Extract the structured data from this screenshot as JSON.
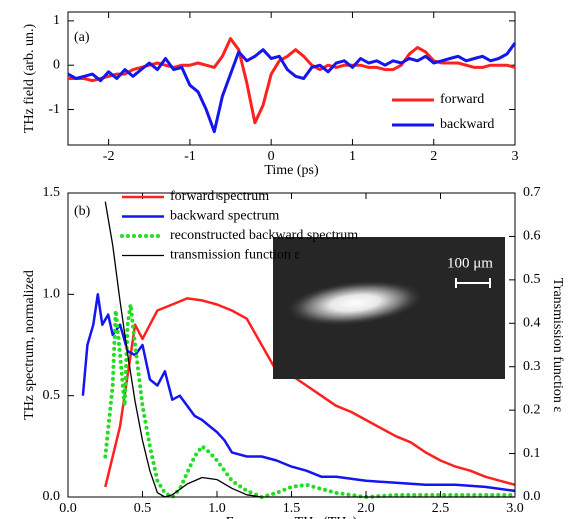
{
  "chart_data": [
    {
      "type": "line",
      "label": "(a)",
      "x_label": "Time (ps)",
      "y_label": "THz field (arb. un.)",
      "xlim": [
        -2.5,
        3
      ],
      "xticks": [
        -2,
        -1,
        0,
        1,
        2,
        3
      ],
      "ylim": [
        -1.8,
        1.2
      ],
      "yticks": [
        -1,
        0,
        1
      ],
      "legend": "lower right",
      "x": [
        -2.5,
        -2.4,
        -2.3,
        -2.2,
        -2.1,
        -2.0,
        -1.9,
        -1.8,
        -1.7,
        -1.6,
        -1.5,
        -1.4,
        -1.3,
        -1.2,
        -1.1,
        -1.0,
        -0.9,
        -0.8,
        -0.7,
        -0.6,
        -0.5,
        -0.4,
        -0.3,
        -0.2,
        -0.1,
        0.0,
        0.1,
        0.2,
        0.3,
        0.4,
        0.5,
        0.6,
        0.7,
        0.8,
        0.9,
        1.0,
        1.1,
        1.2,
        1.3,
        1.4,
        1.5,
        1.6,
        1.7,
        1.8,
        1.9,
        2.0,
        2.1,
        2.2,
        2.3,
        2.4,
        2.5,
        2.6,
        2.7,
        2.8,
        2.9,
        3.0
      ],
      "series": [
        {
          "name": "forward",
          "color": "#ff2020",
          "width": 3,
          "values": [
            -0.3,
            -0.3,
            -0.3,
            -0.35,
            -0.3,
            -0.25,
            -0.2,
            -0.2,
            -0.1,
            -0.05,
            0.0,
            0.05,
            0.0,
            -0.05,
            0.0,
            0.0,
            0.05,
            0.0,
            -0.05,
            0.2,
            0.6,
            0.35,
            -0.4,
            -1.3,
            -0.9,
            -0.2,
            0.1,
            0.2,
            0.35,
            0.2,
            0.0,
            -0.1,
            0.0,
            -0.05,
            0.0,
            0.0,
            0.0,
            -0.05,
            -0.05,
            -0.1,
            -0.1,
            0.0,
            0.25,
            0.4,
            0.3,
            0.1,
            0.05,
            0.05,
            0.05,
            0.0,
            -0.05,
            -0.05,
            0.0,
            0.0,
            0.0,
            -0.05
          ]
        },
        {
          "name": "backward",
          "color": "#1515ee",
          "width": 3,
          "values": [
            -0.2,
            -0.3,
            -0.25,
            -0.2,
            -0.35,
            -0.15,
            -0.3,
            -0.1,
            -0.25,
            -0.1,
            0.05,
            -0.1,
            0.15,
            -0.1,
            -0.05,
            -0.45,
            -0.6,
            -1.0,
            -1.5,
            -0.7,
            -0.2,
            0.3,
            0.1,
            0.2,
            0.35,
            0.15,
            0.2,
            -0.1,
            -0.25,
            -0.3,
            -0.05,
            0.0,
            -0.15,
            0.05,
            0.1,
            -0.05,
            0.15,
            0.05,
            0.1,
            0.0,
            0.1,
            0.05,
            0.15,
            0.1,
            0.2,
            0.05,
            0.1,
            0.15,
            0.2,
            0.1,
            0.15,
            0.2,
            0.1,
            0.15,
            0.25,
            0.5
          ]
        }
      ]
    },
    {
      "type": "line",
      "label": "(b)",
      "x_label": "Frequency νTHz (THz)",
      "y_label": "THz spectrum, normalized",
      "y2_label": "Transmission function ε",
      "inset_label": "100 μm",
      "xlim": [
        0,
        3
      ],
      "xticks": [
        {
          "value": 0,
          "label": "0.0"
        },
        {
          "value": 0.5,
          "label": "0.5"
        },
        {
          "value": 1,
          "label": "1.0"
        },
        {
          "value": 1.5,
          "label": "1.5"
        },
        {
          "value": 2,
          "label": "2.0"
        },
        {
          "value": 2.5,
          "label": "2.5"
        },
        {
          "value": 3,
          "label": "3.0"
        }
      ],
      "ylim": [
        0,
        1.5
      ],
      "yticks": [
        {
          "value": 0,
          "label": "0.0"
        },
        {
          "value": 0.5,
          "label": "0.5"
        },
        {
          "value": 1,
          "label": "1.0"
        },
        {
          "value": 1.5,
          "label": "1.5"
        }
      ],
      "y2lim": [
        0,
        0.7
      ],
      "y2ticks": [
        {
          "value": 0,
          "label": "0.0"
        },
        0.1,
        0.2,
        0.3,
        0.4,
        0.5,
        0.6,
        0.7
      ],
      "legend": "upper center",
      "series": [
        {
          "name": "forward spectrum",
          "color": "#ff2020",
          "width": 2.5,
          "x": [
            0.25,
            0.3,
            0.35,
            0.4,
            0.45,
            0.5,
            0.55,
            0.6,
            0.7,
            0.8,
            0.9,
            1.0,
            1.1,
            1.2,
            1.3,
            1.4,
            1.5,
            1.6,
            1.7,
            1.8,
            1.9,
            2.0,
            2.1,
            2.2,
            2.3,
            2.4,
            2.5,
            2.6,
            2.7,
            2.8,
            2.9,
            3.0
          ],
          "values": [
            0.05,
            0.2,
            0.35,
            0.6,
            0.85,
            0.78,
            0.85,
            0.92,
            0.95,
            0.98,
            0.97,
            0.95,
            0.92,
            0.88,
            0.75,
            0.62,
            0.6,
            0.55,
            0.5,
            0.45,
            0.42,
            0.38,
            0.34,
            0.3,
            0.27,
            0.22,
            0.18,
            0.15,
            0.13,
            0.1,
            0.08,
            0.06
          ]
        },
        {
          "name": "backward spectrum",
          "color": "#1515ee",
          "width": 2.5,
          "x": [
            0.1,
            0.13,
            0.17,
            0.2,
            0.23,
            0.27,
            0.3,
            0.35,
            0.4,
            0.45,
            0.5,
            0.55,
            0.6,
            0.65,
            0.7,
            0.75,
            0.8,
            0.85,
            0.9,
            0.95,
            1.0,
            1.05,
            1.1,
            1.2,
            1.3,
            1.4,
            1.5,
            1.6,
            1.7,
            1.8,
            1.9,
            2.0,
            2.2,
            2.4,
            2.6,
            2.8,
            3.0
          ],
          "values": [
            0.5,
            0.75,
            0.85,
            1.0,
            0.85,
            0.9,
            0.8,
            0.85,
            0.72,
            0.7,
            0.75,
            0.58,
            0.55,
            0.62,
            0.48,
            0.5,
            0.45,
            0.4,
            0.38,
            0.35,
            0.32,
            0.28,
            0.22,
            0.2,
            0.2,
            0.18,
            0.15,
            0.13,
            0.1,
            0.1,
            0.09,
            0.08,
            0.07,
            0.06,
            0.06,
            0.05,
            0.03
          ]
        },
        {
          "name": "reconstructed backward spectrum",
          "color": "#22dd22",
          "width": 4,
          "dash": "dotted",
          "x": [
            0.25,
            0.3,
            0.32,
            0.35,
            0.38,
            0.4,
            0.42,
            0.45,
            0.5,
            0.55,
            0.6,
            0.65,
            0.7,
            0.75,
            0.8,
            0.85,
            0.9,
            0.95,
            1.0,
            1.1,
            1.2,
            1.3,
            1.4,
            1.5,
            1.6,
            1.7,
            1.8,
            2.0,
            2.2,
            2.5,
            2.8,
            3.0
          ],
          "values": [
            0.2,
            0.55,
            0.92,
            0.7,
            0.45,
            0.85,
            0.95,
            0.75,
            0.45,
            0.25,
            0.08,
            0.02,
            0.0,
            0.04,
            0.12,
            0.2,
            0.25,
            0.22,
            0.18,
            0.08,
            0.03,
            0.0,
            0.02,
            0.05,
            0.06,
            0.04,
            0.02,
            0.0,
            0.01,
            0.01,
            0.01,
            0.01
          ]
        },
        {
          "name": "transmission function ε",
          "color": "#000000",
          "width": 1.3,
          "axis": "y2",
          "x": [
            0.25,
            0.3,
            0.35,
            0.4,
            0.45,
            0.5,
            0.55,
            0.6,
            0.65,
            0.7,
            0.8,
            0.9,
            1.0,
            1.1,
            1.2,
            1.3,
            1.5,
            2.0,
            3.0
          ],
          "values": [
            0.68,
            0.58,
            0.45,
            0.33,
            0.22,
            0.13,
            0.06,
            0.01,
            0.0,
            0.005,
            0.03,
            0.045,
            0.04,
            0.02,
            0.005,
            0.0,
            0.0,
            0.0,
            0.0
          ]
        }
      ]
    }
  ]
}
